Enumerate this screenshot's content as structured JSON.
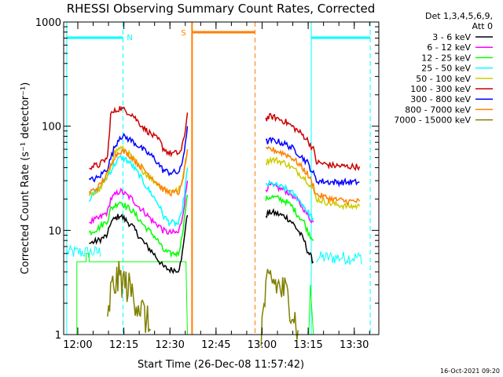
{
  "chart_data": {
    "type": "line",
    "title": "RHESSI Observing Summary Count Rates, Corrected",
    "xlabel": "Start Time (26-Dec-08 11:57:42)",
    "ylabel": "Corrected Count Rate (s⁻¹ detector⁻¹)",
    "y_scale": "log",
    "xlim_minutes": [
      -2.3,
      100.3
    ],
    "x_ticks": [
      {
        "min": 2.3,
        "label": "12:00"
      },
      {
        "min": 17.3,
        "label": "12:15"
      },
      {
        "min": 32.3,
        "label": "12:30"
      },
      {
        "min": 47.3,
        "label": "12:45"
      },
      {
        "min": 62.3,
        "label": "13:00"
      },
      {
        "min": 77.3,
        "label": "13:15"
      },
      {
        "min": 92.3,
        "label": "13:30"
      }
    ],
    "ylim": [
      1,
      1000
    ],
    "y_ticks": [
      {
        "value": 1,
        "label": "1"
      },
      {
        "value": 10,
        "label": "10"
      },
      {
        "value": 100,
        "label": "100"
      },
      {
        "value": 1000,
        "label": "1000"
      }
    ],
    "legend_header": [
      "Det 1,3,4,5,6,9,",
      "Att 0"
    ],
    "legend_placement": "right",
    "series": [
      {
        "name": "3 - 6 keV",
        "color": "#000000",
        "points": [
          [
            6,
            7.5
          ],
          [
            9,
            8
          ],
          [
            12,
            9
          ],
          [
            13,
            12
          ],
          [
            16,
            14
          ],
          [
            18,
            12.5
          ],
          [
            20,
            11
          ],
          [
            22,
            9
          ],
          [
            24,
            7.5
          ],
          [
            27,
            6
          ],
          [
            29,
            5
          ],
          [
            30,
            4.5
          ],
          [
            32,
            4.2
          ],
          [
            35,
            4.2
          ],
          [
            36,
            5
          ],
          [
            37,
            9
          ],
          [
            38,
            14
          ]
        ],
        "points2": [
          [
            63.5,
            14
          ],
          [
            65,
            15
          ],
          [
            67,
            14.5
          ],
          [
            70,
            13.5
          ],
          [
            72,
            12
          ],
          [
            74,
            10
          ],
          [
            76,
            8
          ],
          [
            77,
            6.5
          ],
          [
            79,
            5
          ]
        ]
      },
      {
        "name": "6 - 12 keV",
        "color": "#ff00ff",
        "points": [
          [
            6,
            12
          ],
          [
            9,
            13
          ],
          [
            12,
            15
          ],
          [
            13,
            20
          ],
          [
            16,
            24
          ],
          [
            18,
            22
          ],
          [
            20,
            20
          ],
          [
            22,
            17
          ],
          [
            24,
            15
          ],
          [
            27,
            12
          ],
          [
            29,
            11
          ],
          [
            30,
            10
          ],
          [
            32,
            9.5
          ],
          [
            35,
            9.5
          ],
          [
            36,
            12
          ],
          [
            37,
            18
          ],
          [
            38,
            30
          ]
        ],
        "points2": [
          [
            63.5,
            25
          ],
          [
            65,
            27
          ],
          [
            67,
            26
          ],
          [
            70,
            24
          ],
          [
            72,
            22
          ],
          [
            74,
            19
          ],
          [
            76,
            16
          ],
          [
            77,
            14
          ],
          [
            79,
            12
          ]
        ]
      },
      {
        "name": "12 - 25 keV",
        "color": "#00ff00",
        "points": [
          [
            6,
            9.5
          ],
          [
            9,
            10.5
          ],
          [
            12,
            12.5
          ],
          [
            13,
            16
          ],
          [
            16,
            19
          ],
          [
            18,
            17
          ],
          [
            20,
            15.5
          ],
          [
            22,
            13
          ],
          [
            24,
            11
          ],
          [
            27,
            9
          ],
          [
            29,
            7.5
          ],
          [
            30,
            6.5
          ],
          [
            32,
            6
          ],
          [
            35,
            6
          ],
          [
            36,
            8
          ],
          [
            37,
            13
          ],
          [
            38,
            22
          ]
        ],
        "points2": [
          [
            63.5,
            20
          ],
          [
            65,
            21
          ],
          [
            67,
            20.5
          ],
          [
            70,
            19
          ],
          [
            72,
            17
          ],
          [
            74,
            14
          ],
          [
            76,
            12
          ],
          [
            77,
            10
          ],
          [
            79,
            8
          ]
        ]
      },
      {
        "name": "25 - 50 keV",
        "color": "#00ffff",
        "points": [
          [
            6,
            20
          ],
          [
            9,
            25
          ],
          [
            12,
            33
          ],
          [
            14,
            42
          ],
          [
            16,
            50
          ],
          [
            18,
            48
          ],
          [
            20,
            42
          ],
          [
            22,
            35
          ],
          [
            24,
            28
          ],
          [
            27,
            21
          ],
          [
            29,
            17
          ],
          [
            30,
            14
          ],
          [
            32,
            12
          ],
          [
            35,
            11.5
          ],
          [
            36,
            14
          ],
          [
            37,
            22
          ],
          [
            38,
            40
          ]
        ],
        "points2": [
          [
            63.5,
            27
          ],
          [
            65,
            28
          ],
          [
            67,
            27
          ],
          [
            70,
            25
          ],
          [
            72,
            23
          ],
          [
            74,
            20
          ],
          [
            76,
            17
          ],
          [
            77,
            15
          ],
          [
            79,
            13
          ]
        ]
      },
      {
        "name": "50 - 100 keV",
        "color": "#cccc00",
        "points": [
          [
            6,
            21
          ],
          [
            9,
            24
          ],
          [
            12,
            32
          ],
          [
            14,
            55
          ],
          [
            16,
            62
          ],
          [
            18,
            58
          ],
          [
            20,
            50
          ],
          [
            22,
            42
          ],
          [
            24,
            36
          ],
          [
            27,
            30
          ],
          [
            29,
            27
          ],
          [
            30,
            25
          ],
          [
            32,
            24
          ],
          [
            35,
            24
          ],
          [
            36,
            27
          ],
          [
            37,
            40
          ],
          [
            38,
            60
          ]
        ],
        "points2": [
          [
            63.5,
            45
          ],
          [
            65,
            48
          ],
          [
            67,
            47
          ],
          [
            70,
            44
          ],
          [
            72,
            40
          ],
          [
            74,
            36
          ],
          [
            76,
            32
          ],
          [
            77,
            30
          ],
          [
            79,
            24
          ],
          [
            80,
            20
          ],
          [
            85,
            18
          ],
          [
            90,
            17
          ],
          [
            94,
            17
          ]
        ]
      },
      {
        "name": "100 - 300 keV",
        "color": "#cc0000",
        "points": [
          [
            6,
            41
          ],
          [
            9,
            42
          ],
          [
            12,
            50
          ],
          [
            13,
            130
          ],
          [
            16,
            150
          ],
          [
            18,
            140
          ],
          [
            20,
            130
          ],
          [
            22,
            110
          ],
          [
            24,
            95
          ],
          [
            27,
            80
          ],
          [
            29,
            72
          ],
          [
            30,
            62
          ],
          [
            32,
            55
          ],
          [
            35,
            55
          ],
          [
            36,
            58
          ],
          [
            37,
            80
          ],
          [
            38,
            135
          ]
        ],
        "points2": [
          [
            63.5,
            118
          ],
          [
            65,
            124
          ],
          [
            67,
            120
          ],
          [
            70,
            110
          ],
          [
            72,
            100
          ],
          [
            74,
            90
          ],
          [
            76,
            80
          ],
          [
            77,
            74
          ],
          [
            79,
            60
          ],
          [
            80,
            45
          ],
          [
            85,
            42
          ],
          [
            90,
            41
          ],
          [
            94,
            41
          ]
        ]
      },
      {
        "name": "300 - 800 keV",
        "color": "#0000ff",
        "points": [
          [
            6,
            30
          ],
          [
            9,
            32
          ],
          [
            12,
            40
          ],
          [
            14,
            60
          ],
          [
            16,
            80
          ],
          [
            18,
            78
          ],
          [
            20,
            72
          ],
          [
            22,
            65
          ],
          [
            24,
            58
          ],
          [
            27,
            50
          ],
          [
            29,
            42
          ],
          [
            30,
            38
          ],
          [
            32,
            36
          ],
          [
            35,
            36
          ],
          [
            36,
            40
          ],
          [
            37,
            60
          ],
          [
            38,
            100
          ]
        ],
        "points2": [
          [
            63.5,
            70
          ],
          [
            65,
            73
          ],
          [
            67,
            72
          ],
          [
            70,
            67
          ],
          [
            72,
            62
          ],
          [
            74,
            55
          ],
          [
            76,
            48
          ],
          [
            77,
            45
          ],
          [
            79,
            35
          ],
          [
            80,
            30
          ],
          [
            85,
            29
          ],
          [
            90,
            29
          ],
          [
            94,
            29
          ]
        ]
      },
      {
        "name": "800 - 7000 keV",
        "color": "#ff8000",
        "points": [
          [
            6,
            23
          ],
          [
            9,
            26
          ],
          [
            12,
            35
          ],
          [
            14,
            50
          ],
          [
            16,
            58
          ],
          [
            18,
            56
          ],
          [
            20,
            50
          ],
          [
            22,
            43
          ],
          [
            24,
            38
          ],
          [
            27,
            31
          ],
          [
            29,
            27
          ],
          [
            30,
            25
          ],
          [
            32,
            23
          ],
          [
            35,
            23
          ],
          [
            36,
            26
          ],
          [
            37,
            38
          ],
          [
            38,
            60
          ]
        ],
        "points2": [
          [
            63.5,
            58
          ],
          [
            65,
            60
          ],
          [
            67,
            58
          ],
          [
            70,
            54
          ],
          [
            72,
            50
          ],
          [
            74,
            44
          ],
          [
            76,
            38
          ],
          [
            77,
            35
          ],
          [
            79,
            27
          ],
          [
            80,
            22
          ],
          [
            85,
            20
          ],
          [
            90,
            19
          ],
          [
            94,
            19
          ]
        ]
      },
      {
        "name": "7000 - 15000 keV",
        "color": "#808000",
        "points": [
          [
            12,
            1.2
          ],
          [
            13,
            2.5
          ],
          [
            14,
            3
          ],
          [
            16,
            3.5
          ],
          [
            18,
            3
          ],
          [
            20,
            2.5
          ],
          [
            22,
            2
          ],
          [
            24,
            1.5
          ],
          [
            26,
            1.1
          ]
        ],
        "points2": [
          [
            62,
            1.1
          ],
          [
            63.5,
            2.5
          ],
          [
            65,
            3.5
          ],
          [
            67,
            3
          ],
          [
            70,
            2.5
          ],
          [
            72,
            1.8
          ],
          [
            74,
            1.1
          ]
        ]
      }
    ],
    "attenuator_trace": {
      "color": "#00ff00",
      "points": [
        [
          2,
          1
        ],
        [
          2,
          5
        ],
        [
          5,
          5
        ],
        [
          5,
          6
        ],
        [
          6,
          6
        ],
        [
          6,
          5
        ],
        [
          37.5,
          5
        ],
        [
          38,
          1
        ]
      ],
      "points2": [
        [
          62,
          1
        ],
        [
          77.5,
          1
        ],
        [
          78,
          3
        ],
        [
          79,
          1
        ],
        [
          94,
          1
        ]
      ]
    },
    "annotations": [
      {
        "label": "N",
        "color": "#00ffff"
      },
      {
        "label": "S",
        "color": "#ff8000"
      }
    ],
    "markers": {
      "night_color": "#00ffff",
      "saa_color": "#ff8000",
      "night_solid_lines_min": [
        -1.3,
        78.3
      ],
      "night_dashed_lines_min": [
        17.0,
        97.5
      ],
      "night_bar_segments_min": [
        [
          -1.3,
          17.0
        ],
        [
          78.3,
          97.5
        ]
      ],
      "saa_solid_lines_min": [
        39.5
      ],
      "saa_dashed_lines_min": [
        60.0
      ],
      "saa_bar_segments_min": [
        [
          39.5,
          60.0
        ]
      ],
      "cyan_steps": [
        {
          "start": -1.2,
          "end": 9.8,
          "value": 6.2
        },
        {
          "start": 80.0,
          "end": 95.0,
          "value": 5.5
        }
      ]
    },
    "timestamp": "16-Oct-2021 09:20"
  }
}
